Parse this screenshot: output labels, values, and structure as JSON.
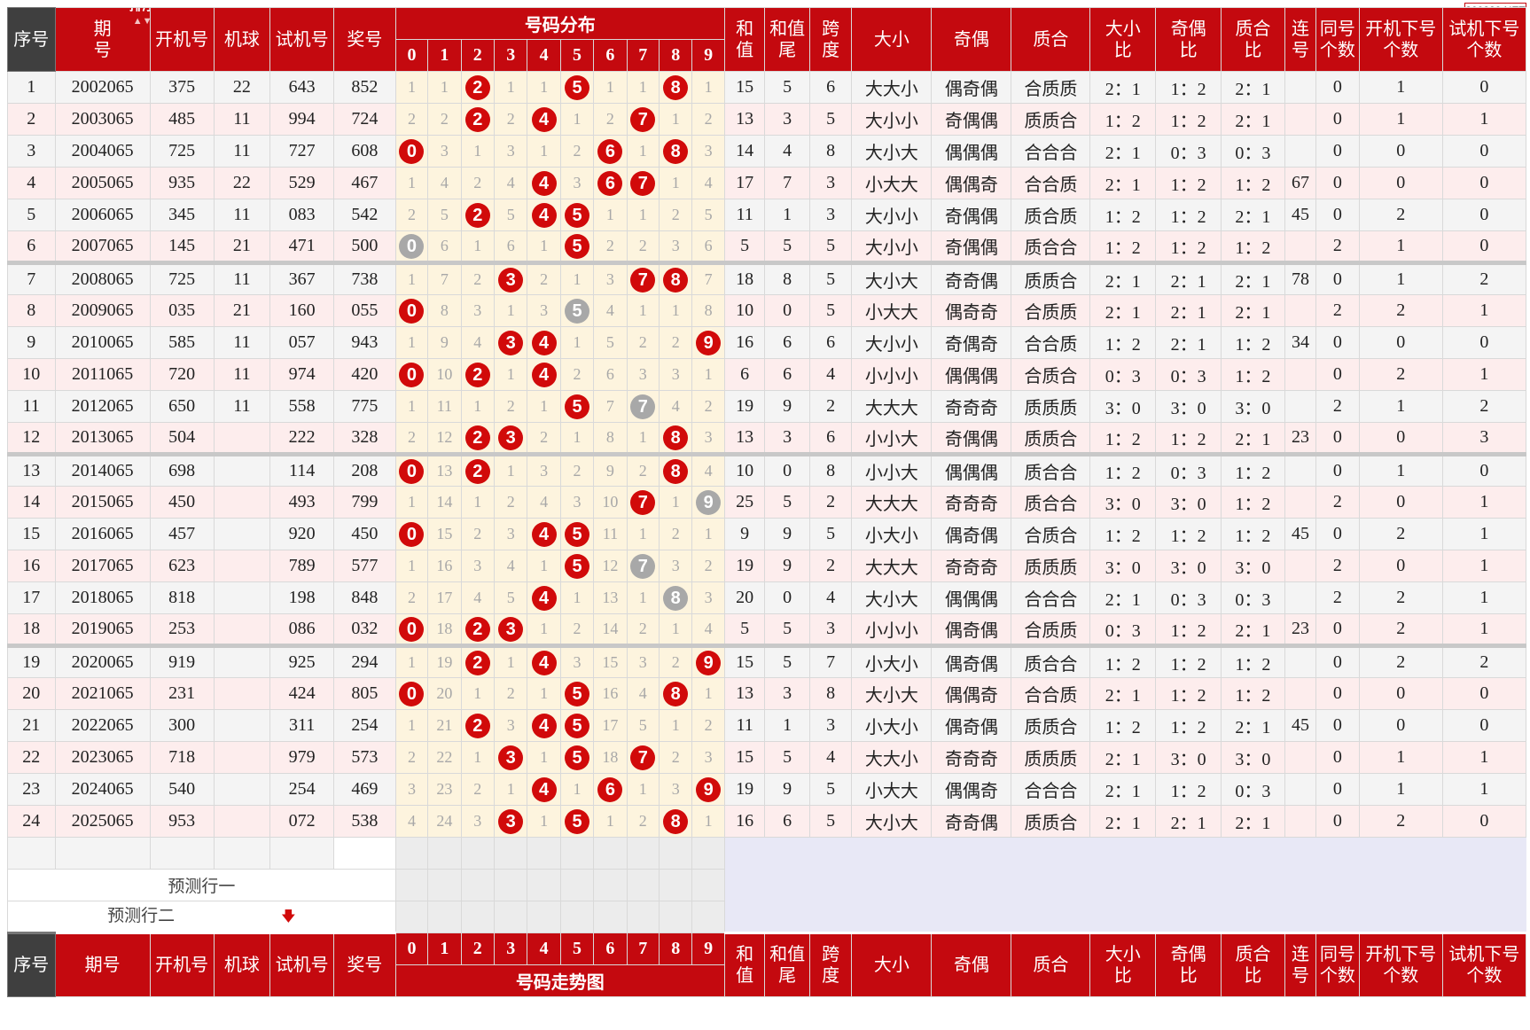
{
  "watermark": "800820.NET",
  "header": {
    "seq": "序号",
    "period": "期号",
    "period_top": "期",
    "period_bottom": "号",
    "sort_label": "排序",
    "open": "开机号",
    "machine": "机球",
    "trial": "试机号",
    "prize": "奖号",
    "dist_top": "号码分布",
    "dist_bottom": "号码走势图",
    "digits": [
      "0",
      "1",
      "2",
      "3",
      "4",
      "5",
      "6",
      "7",
      "8",
      "9"
    ],
    "sum_a": "和",
    "sum_b": "值",
    "sumtail_a": "和值",
    "sumtail_b": "尾",
    "span_a": "跨",
    "span_b": "度",
    "size": "大小",
    "oddeven": "奇偶",
    "primecomp": "质合",
    "sizeratio_a": "大小",
    "sizeratio_b": "比",
    "oeratio_a": "奇偶",
    "oeratio_b": "比",
    "pcratio_a": "质合",
    "pcratio_b": "比",
    "consec_a": "连",
    "consec_b": "号",
    "same_a": "同号",
    "same_b": "个数",
    "opendown_a": "开机下号",
    "opendown_b": "个数",
    "trialdown_a": "试机下号",
    "trialdown_b": "个数"
  },
  "forecast": {
    "row1": "预测行一",
    "row2": "预测行二"
  },
  "rows": [
    {
      "seq": "1",
      "period": "2002065",
      "open": "375",
      "machine": "22",
      "trial": "643",
      "prize": "852",
      "dist": [
        "1",
        "1",
        "2",
        "1",
        "1",
        "5",
        "1",
        "1",
        "8",
        "1"
      ],
      "sum": "15",
      "sumtail": "5",
      "span": "6",
      "size": "大大小",
      "oe": "偶奇偶",
      "pc": "合质质",
      "sr": "2：1",
      "oer": "1：2",
      "pcr": "2：1",
      "consec": "",
      "same": "0",
      "opendown": "1",
      "trialdown": "0"
    },
    {
      "seq": "2",
      "period": "2003065",
      "open": "485",
      "machine": "11",
      "trial": "994",
      "prize": "724",
      "dist": [
        "2",
        "2",
        "2",
        "2",
        "4",
        "1",
        "2",
        "7",
        "1",
        "2"
      ],
      "sum": "13",
      "sumtail": "3",
      "span": "5",
      "size": "大小小",
      "oe": "奇偶偶",
      "pc": "质质合",
      "sr": "1：2",
      "oer": "1：2",
      "pcr": "2：1",
      "consec": "",
      "same": "0",
      "opendown": "1",
      "trialdown": "1"
    },
    {
      "seq": "3",
      "period": "2004065",
      "open": "725",
      "machine": "11",
      "trial": "727",
      "prize": "608",
      "dist": [
        "0",
        "3",
        "1",
        "3",
        "1",
        "2",
        "6",
        "1",
        "8",
        "3"
      ],
      "sum": "14",
      "sumtail": "4",
      "span": "8",
      "size": "大小大",
      "oe": "偶偶偶",
      "pc": "合合合",
      "sr": "2：1",
      "oer": "0：3",
      "pcr": "0：3",
      "consec": "",
      "same": "0",
      "opendown": "0",
      "trialdown": "0"
    },
    {
      "seq": "4",
      "period": "2005065",
      "open": "935",
      "machine": "22",
      "trial": "529",
      "prize": "467",
      "dist": [
        "1",
        "4",
        "2",
        "4",
        "4",
        "3",
        "6",
        "7",
        "1",
        "4"
      ],
      "sum": "17",
      "sumtail": "7",
      "span": "3",
      "size": "小大大",
      "oe": "偶偶奇",
      "pc": "合合质",
      "sr": "2：1",
      "oer": "1：2",
      "pcr": "1：2",
      "consec": "67",
      "same": "0",
      "opendown": "0",
      "trialdown": "0"
    },
    {
      "seq": "5",
      "period": "2006065",
      "open": "345",
      "machine": "11",
      "trial": "083",
      "prize": "542",
      "dist": [
        "2",
        "5",
        "2",
        "5",
        "4",
        "5",
        "1",
        "1",
        "2",
        "5"
      ],
      "sum": "11",
      "sumtail": "1",
      "span": "3",
      "size": "大小小",
      "oe": "奇偶偶",
      "pc": "质合质",
      "sr": "1：2",
      "oer": "1：2",
      "pcr": "2：1",
      "consec": "45",
      "same": "0",
      "opendown": "2",
      "trialdown": "0"
    },
    {
      "seq": "6",
      "period": "2007065",
      "open": "145",
      "machine": "21",
      "trial": "471",
      "prize": "500",
      "dist": [
        "0",
        "6",
        "1",
        "6",
        "1",
        "5",
        "2",
        "2",
        "3",
        "6"
      ],
      "sum": "5",
      "sumtail": "5",
      "span": "5",
      "size": "大小小",
      "oe": "奇偶偶",
      "pc": "质合合",
      "sr": "1：2",
      "oer": "1：2",
      "pcr": "1：2",
      "consec": "",
      "same": "2",
      "opendown": "1",
      "trialdown": "0"
    },
    {
      "seq": "7",
      "period": "2008065",
      "open": "725",
      "machine": "11",
      "trial": "367",
      "prize": "738",
      "dist": [
        "1",
        "7",
        "2",
        "3",
        "2",
        "1",
        "3",
        "7",
        "8",
        "7"
      ],
      "sum": "18",
      "sumtail": "8",
      "span": "5",
      "size": "大小大",
      "oe": "奇奇偶",
      "pc": "质质合",
      "sr": "2：1",
      "oer": "2：1",
      "pcr": "2：1",
      "consec": "78",
      "same": "0",
      "opendown": "1",
      "trialdown": "2"
    },
    {
      "seq": "8",
      "period": "2009065",
      "open": "035",
      "machine": "21",
      "trial": "160",
      "prize": "055",
      "dist": [
        "0",
        "8",
        "3",
        "1",
        "3",
        "5",
        "4",
        "1",
        "1",
        "8"
      ],
      "sum": "10",
      "sumtail": "0",
      "span": "5",
      "size": "小大大",
      "oe": "偶奇奇",
      "pc": "合质质",
      "sr": "2：1",
      "oer": "2：1",
      "pcr": "2：1",
      "consec": "",
      "same": "2",
      "opendown": "2",
      "trialdown": "1"
    },
    {
      "seq": "9",
      "period": "2010065",
      "open": "585",
      "machine": "11",
      "trial": "057",
      "prize": "943",
      "dist": [
        "1",
        "9",
        "4",
        "3",
        "4",
        "1",
        "5",
        "2",
        "2",
        "9"
      ],
      "sum": "16",
      "sumtail": "6",
      "span": "6",
      "size": "大小小",
      "oe": "奇偶奇",
      "pc": "合合质",
      "sr": "1：2",
      "oer": "2：1",
      "pcr": "1：2",
      "consec": "34",
      "same": "0",
      "opendown": "0",
      "trialdown": "0"
    },
    {
      "seq": "10",
      "period": "2011065",
      "open": "720",
      "machine": "11",
      "trial": "974",
      "prize": "420",
      "dist": [
        "0",
        "10",
        "2",
        "1",
        "4",
        "2",
        "6",
        "3",
        "3",
        "1"
      ],
      "sum": "6",
      "sumtail": "6",
      "span": "4",
      "size": "小小小",
      "oe": "偶偶偶",
      "pc": "合质合",
      "sr": "0：3",
      "oer": "0：3",
      "pcr": "1：2",
      "consec": "",
      "same": "0",
      "opendown": "2",
      "trialdown": "1"
    },
    {
      "seq": "11",
      "period": "2012065",
      "open": "650",
      "machine": "11",
      "trial": "558",
      "prize": "775",
      "dist": [
        "1",
        "11",
        "1",
        "2",
        "1",
        "5",
        "7",
        "7",
        "4",
        "2"
      ],
      "sum": "19",
      "sumtail": "9",
      "span": "2",
      "size": "大大大",
      "oe": "奇奇奇",
      "pc": "质质质",
      "sr": "3：0",
      "oer": "3：0",
      "pcr": "3：0",
      "consec": "",
      "same": "2",
      "opendown": "1",
      "trialdown": "2"
    },
    {
      "seq": "12",
      "period": "2013065",
      "open": "504",
      "machine": "",
      "trial": "222",
      "prize": "328",
      "dist": [
        "2",
        "12",
        "2",
        "3",
        "2",
        "1",
        "8",
        "1",
        "8",
        "3"
      ],
      "sum": "13",
      "sumtail": "3",
      "span": "6",
      "size": "小小大",
      "oe": "奇偶偶",
      "pc": "质质合",
      "sr": "1：2",
      "oer": "1：2",
      "pcr": "2：1",
      "consec": "23",
      "same": "0",
      "opendown": "0",
      "trialdown": "3"
    },
    {
      "seq": "13",
      "period": "2014065",
      "open": "698",
      "machine": "",
      "trial": "114",
      "prize": "208",
      "dist": [
        "0",
        "13",
        "2",
        "1",
        "3",
        "2",
        "9",
        "2",
        "8",
        "4"
      ],
      "sum": "10",
      "sumtail": "0",
      "span": "8",
      "size": "小小大",
      "oe": "偶偶偶",
      "pc": "质合合",
      "sr": "1：2",
      "oer": "0：3",
      "pcr": "1：2",
      "consec": "",
      "same": "0",
      "opendown": "1",
      "trialdown": "0"
    },
    {
      "seq": "14",
      "period": "2015065",
      "open": "450",
      "machine": "",
      "trial": "493",
      "prize": "799",
      "dist": [
        "1",
        "14",
        "1",
        "2",
        "4",
        "3",
        "10",
        "7",
        "1",
        "9"
      ],
      "sum": "25",
      "sumtail": "5",
      "span": "2",
      "size": "大大大",
      "oe": "奇奇奇",
      "pc": "质合合",
      "sr": "3：0",
      "oer": "3：0",
      "pcr": "1：2",
      "consec": "",
      "same": "2",
      "opendown": "0",
      "trialdown": "1"
    },
    {
      "seq": "15",
      "period": "2016065",
      "open": "457",
      "machine": "",
      "trial": "920",
      "prize": "450",
      "dist": [
        "0",
        "15",
        "2",
        "3",
        "4",
        "5",
        "11",
        "1",
        "2",
        "1"
      ],
      "sum": "9",
      "sumtail": "9",
      "span": "5",
      "size": "小大小",
      "oe": "偶奇偶",
      "pc": "合质合",
      "sr": "1：2",
      "oer": "1：2",
      "pcr": "1：2",
      "consec": "45",
      "same": "0",
      "opendown": "2",
      "trialdown": "1"
    },
    {
      "seq": "16",
      "period": "2017065",
      "open": "623",
      "machine": "",
      "trial": "789",
      "prize": "577",
      "dist": [
        "1",
        "16",
        "3",
        "4",
        "1",
        "5",
        "12",
        "7",
        "3",
        "2"
      ],
      "sum": "19",
      "sumtail": "9",
      "span": "2",
      "size": "大大大",
      "oe": "奇奇奇",
      "pc": "质质质",
      "sr": "3：0",
      "oer": "3：0",
      "pcr": "3：0",
      "consec": "",
      "same": "2",
      "opendown": "0",
      "trialdown": "1"
    },
    {
      "seq": "17",
      "period": "2018065",
      "open": "818",
      "machine": "",
      "trial": "198",
      "prize": "848",
      "dist": [
        "2",
        "17",
        "4",
        "5",
        "4",
        "1",
        "13",
        "1",
        "8",
        "3"
      ],
      "sum": "20",
      "sumtail": "0",
      "span": "4",
      "size": "大小大",
      "oe": "偶偶偶",
      "pc": "合合合",
      "sr": "2：1",
      "oer": "0：3",
      "pcr": "0：3",
      "consec": "",
      "same": "2",
      "opendown": "2",
      "trialdown": "1"
    },
    {
      "seq": "18",
      "period": "2019065",
      "open": "253",
      "machine": "",
      "trial": "086",
      "prize": "032",
      "dist": [
        "0",
        "18",
        "2",
        "3",
        "1",
        "2",
        "14",
        "2",
        "1",
        "4"
      ],
      "sum": "5",
      "sumtail": "5",
      "span": "3",
      "size": "小小小",
      "oe": "偶奇偶",
      "pc": "合质质",
      "sr": "0：3",
      "oer": "1：2",
      "pcr": "2：1",
      "consec": "23",
      "same": "0",
      "opendown": "2",
      "trialdown": "1"
    },
    {
      "seq": "19",
      "period": "2020065",
      "open": "919",
      "machine": "",
      "trial": "925",
      "prize": "294",
      "dist": [
        "1",
        "19",
        "2",
        "1",
        "4",
        "3",
        "15",
        "3",
        "2",
        "9"
      ],
      "sum": "15",
      "sumtail": "5",
      "span": "7",
      "size": "小大小",
      "oe": "偶奇偶",
      "pc": "质合合",
      "sr": "1：2",
      "oer": "1：2",
      "pcr": "1：2",
      "consec": "",
      "same": "0",
      "opendown": "2",
      "trialdown": "2"
    },
    {
      "seq": "20",
      "period": "2021065",
      "open": "231",
      "machine": "",
      "trial": "424",
      "prize": "805",
      "dist": [
        "0",
        "20",
        "1",
        "2",
        "1",
        "5",
        "16",
        "4",
        "8",
        "1"
      ],
      "sum": "13",
      "sumtail": "3",
      "span": "8",
      "size": "大小大",
      "oe": "偶偶奇",
      "pc": "合合质",
      "sr": "2：1",
      "oer": "1：2",
      "pcr": "1：2",
      "consec": "",
      "same": "0",
      "opendown": "0",
      "trialdown": "0"
    },
    {
      "seq": "21",
      "period": "2022065",
      "open": "300",
      "machine": "",
      "trial": "311",
      "prize": "254",
      "dist": [
        "1",
        "21",
        "2",
        "3",
        "4",
        "5",
        "17",
        "5",
        "1",
        "2"
      ],
      "sum": "11",
      "sumtail": "1",
      "span": "3",
      "size": "小大小",
      "oe": "偶奇偶",
      "pc": "质质合",
      "sr": "1：2",
      "oer": "1：2",
      "pcr": "2：1",
      "consec": "45",
      "same": "0",
      "opendown": "0",
      "trialdown": "0"
    },
    {
      "seq": "22",
      "period": "2023065",
      "open": "718",
      "machine": "",
      "trial": "979",
      "prize": "573",
      "dist": [
        "2",
        "22",
        "1",
        "3",
        "1",
        "5",
        "18",
        "7",
        "2",
        "3"
      ],
      "sum": "15",
      "sumtail": "5",
      "span": "4",
      "size": "大大小",
      "oe": "奇奇奇",
      "pc": "质质质",
      "sr": "2：1",
      "oer": "3：0",
      "pcr": "3：0",
      "consec": "",
      "same": "0",
      "opendown": "1",
      "trialdown": "1"
    },
    {
      "seq": "23",
      "period": "2024065",
      "open": "540",
      "machine": "",
      "trial": "254",
      "prize": "469",
      "dist": [
        "3",
        "23",
        "2",
        "1",
        "4",
        "1",
        "6",
        "1",
        "3",
        "9"
      ],
      "sum": "19",
      "sumtail": "9",
      "span": "5",
      "size": "小大大",
      "oe": "偶偶奇",
      "pc": "合合合",
      "sr": "2：1",
      "oer": "1：2",
      "pcr": "0：3",
      "consec": "",
      "same": "0",
      "opendown": "1",
      "trialdown": "1"
    },
    {
      "seq": "24",
      "period": "2025065",
      "open": "953",
      "machine": "",
      "trial": "072",
      "prize": "538",
      "dist": [
        "4",
        "24",
        "3",
        "3",
        "1",
        "5",
        "1",
        "2",
        "8",
        "1"
      ],
      "sum": "16",
      "sumtail": "6",
      "span": "5",
      "size": "大小大",
      "oe": "奇奇偶",
      "pc": "质质合",
      "sr": "2：1",
      "oer": "2：1",
      "pcr": "2：1",
      "consec": "",
      "same": "0",
      "opendown": "2",
      "trialdown": "0"
    }
  ],
  "hits": [
    [
      2,
      5,
      8
    ],
    [
      4,
      7,
      2
    ],
    [
      6,
      0,
      8
    ],
    [
      4,
      6,
      7
    ],
    [
      5,
      4,
      2
    ],
    [
      5,
      0,
      0
    ],
    [
      7,
      3,
      8
    ],
    [
      0,
      5,
      5
    ],
    [
      9,
      4,
      3
    ],
    [
      4,
      2,
      0
    ],
    [
      7,
      7,
      5
    ],
    [
      3,
      2,
      8
    ],
    [
      2,
      0,
      8
    ],
    [
      7,
      9,
      9
    ],
    [
      4,
      5,
      0
    ],
    [
      5,
      7,
      7
    ],
    [
      8,
      4,
      8
    ],
    [
      0,
      3,
      2
    ],
    [
      2,
      9,
      4
    ],
    [
      8,
      0,
      5
    ],
    [
      2,
      5,
      4
    ],
    [
      5,
      7,
      3
    ],
    [
      4,
      6,
      9
    ],
    [
      5,
      3,
      8
    ]
  ],
  "colors": {
    "header_red": "#c4090f",
    "ball_red": "#d10a0a",
    "ball_repeat_gray": "#a8a8a8",
    "dist_bg": "#fdf4de"
  }
}
